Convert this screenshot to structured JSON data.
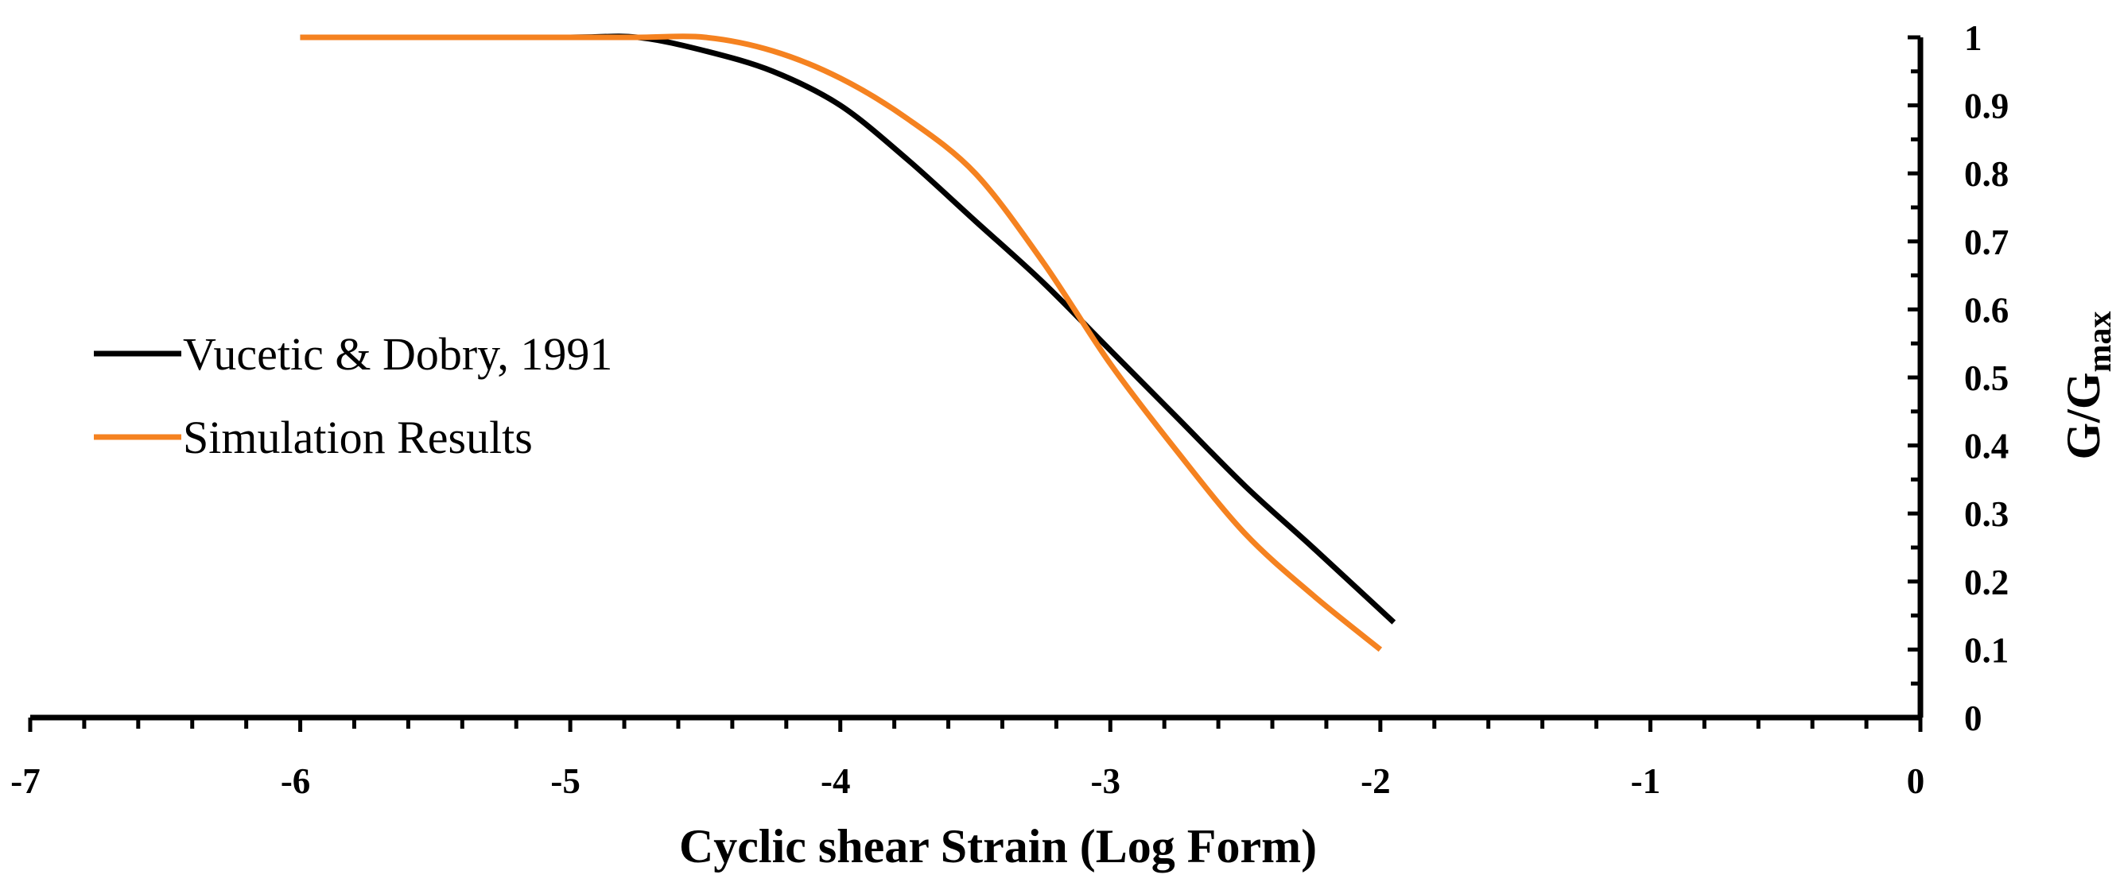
{
  "chart_data": {
    "type": "line",
    "title": "",
    "xlabel": "Cyclic shear Strain (Log Form)",
    "ylabel": {
      "main": "G/G",
      "sub": "max"
    },
    "xlim": [
      -7,
      0
    ],
    "ylim": [
      0,
      1
    ],
    "x_ticks": [
      -7,
      -6,
      -5,
      -4,
      -3,
      -2,
      -1,
      0
    ],
    "x_tick_labels": [
      "-7",
      "-6",
      "-5",
      "-4",
      "-3",
      "-2",
      "-1",
      "0"
    ],
    "y_ticks": [
      0,
      0.1,
      0.2,
      0.3,
      0.4,
      0.5,
      0.6,
      0.7,
      0.8,
      0.9,
      1
    ],
    "y_tick_labels": [
      "0",
      "0.1",
      "0.2",
      "0.3",
      "0.4",
      "0.5",
      "0.6",
      "0.7",
      "0.8",
      "0.9",
      "1"
    ],
    "y_axis_side": "right",
    "grid": false,
    "legend_position": "middle-left",
    "series": [
      {
        "name": "Vucetic & Dobry, 1991",
        "color": "#000000",
        "x": [
          -6.0,
          -5.5,
          -5.0,
          -4.75,
          -4.5,
          -4.25,
          -4.0,
          -3.75,
          -3.5,
          -3.25,
          -3.0,
          -2.75,
          -2.5,
          -2.25,
          -1.95
        ],
        "y": [
          1.0,
          1.0,
          1.0,
          1.0,
          0.98,
          0.95,
          0.9,
          0.82,
          0.73,
          0.64,
          0.54,
          0.44,
          0.34,
          0.25,
          0.14
        ]
      },
      {
        "name": "Simulation Results",
        "color": "#F58220",
        "x": [
          -6.0,
          -5.5,
          -5.0,
          -4.75,
          -4.5,
          -4.25,
          -4.0,
          -3.75,
          -3.5,
          -3.25,
          -3.0,
          -2.75,
          -2.5,
          -2.25,
          -2.0
        ],
        "y": [
          1.0,
          1.0,
          1.0,
          1.0,
          1.0,
          0.98,
          0.94,
          0.88,
          0.8,
          0.67,
          0.52,
          0.39,
          0.27,
          0.18,
          0.1
        ]
      }
    ]
  }
}
